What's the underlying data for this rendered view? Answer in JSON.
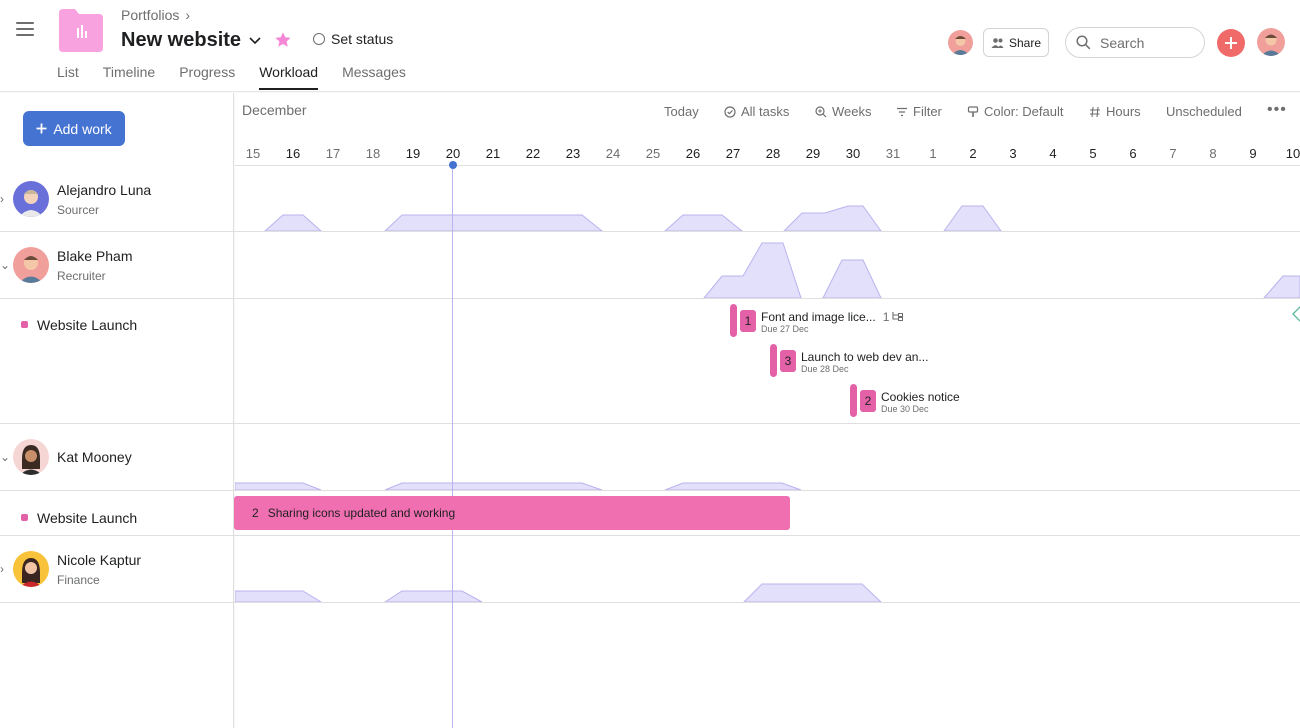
{
  "header": {
    "breadcrumb": "Portfolios",
    "title": "New website",
    "status_label": "Set status",
    "share_label": "Share",
    "search_placeholder": "Search",
    "tabs": [
      {
        "label": "List",
        "active": false
      },
      {
        "label": "Timeline",
        "active": false
      },
      {
        "label": "Progress",
        "active": false
      },
      {
        "label": "Workload",
        "active": true
      },
      {
        "label": "Messages",
        "active": false
      }
    ]
  },
  "toolbar": {
    "add_work_label": "Add work",
    "month": "December",
    "today": "Today",
    "all_tasks": "All tasks",
    "weeks": "Weeks",
    "filter": "Filter",
    "color": "Color: Default",
    "hours": "Hours",
    "unscheduled": "Unscheduled"
  },
  "days": [
    "15",
    "16",
    "17",
    "18",
    "19",
    "20",
    "21",
    "22",
    "23",
    "24",
    "25",
    "26",
    "27",
    "28",
    "29",
    "30",
    "31",
    "1",
    "2",
    "3",
    "4",
    "5",
    "6",
    "7",
    "8",
    "9",
    "10"
  ],
  "weekend_days": [
    "15",
    "17",
    "18",
    "24",
    "25",
    "31",
    "1",
    "7",
    "8"
  ],
  "people": [
    {
      "name": "Alejandro Luna",
      "role": "Sourcer"
    },
    {
      "name": "Blake Pham",
      "role": "Recruiter"
    },
    {
      "name": "Kat Mooney",
      "role": ""
    },
    {
      "name": "Nicole Kaptur",
      "role": "Finance"
    }
  ],
  "projects": {
    "blake": "Website Launch",
    "kat": "Website Launch"
  },
  "tasks": [
    {
      "count": "1",
      "name": "Font and image lice...",
      "due": "Due 27 Dec",
      "subtasks": "1"
    },
    {
      "count": "3",
      "name": "Launch to web dev an...",
      "due": "Due 28 Dec"
    },
    {
      "count": "2",
      "name": "Cookies notice",
      "due": "Due 30 Dec"
    }
  ],
  "long_task": {
    "count": "2",
    "name": "Sharing icons updated and working"
  },
  "colors": {
    "accent": "#4573d2",
    "task_pink": "#e362a7",
    "workload_fill": "#e3e0fb",
    "add_button": "#f06a6a"
  }
}
